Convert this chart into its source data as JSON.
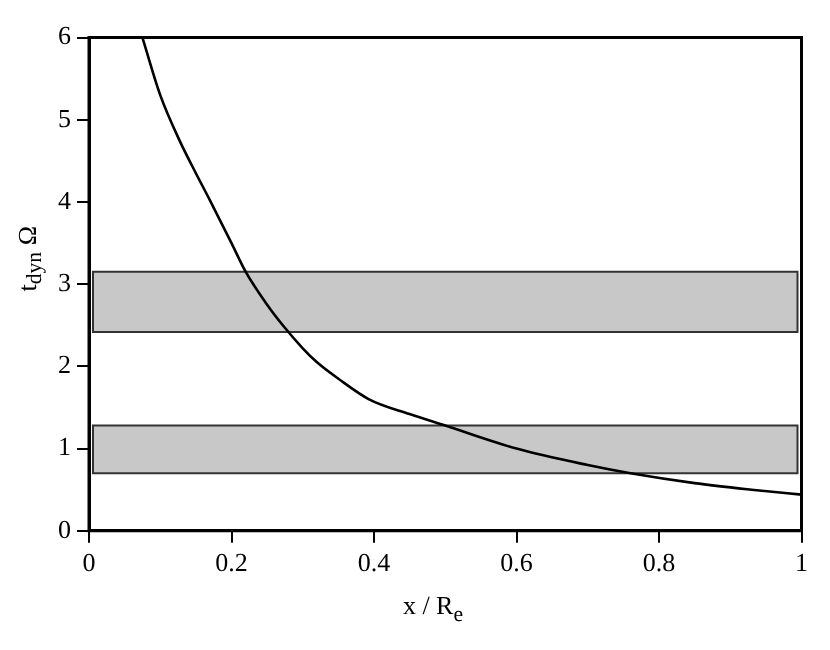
{
  "chart_data": {
    "type": "line",
    "xlabel": "x / R$_{e}$",
    "ylabel": "t$_{dyn}$ Ω",
    "series": [
      {
        "color": "#000000",
        "x": [
          0.075,
          0.1,
          0.127,
          0.15,
          0.168,
          0.2,
          0.22,
          0.25,
          0.272,
          0.3,
          0.32,
          0.35,
          0.393,
          0.45,
          0.5,
          0.6,
          0.7,
          0.76,
          0.85,
          0.93,
          1.0
        ],
        "values": [
          6.0,
          5.3,
          4.75,
          4.35,
          4.05,
          3.5,
          3.15,
          2.75,
          2.5,
          2.22,
          2.05,
          1.85,
          1.6,
          1.42,
          1.28,
          1.0,
          0.8,
          0.7,
          0.58,
          0.5,
          0.44
        ]
      }
    ],
    "xlim": [
      0,
      1
    ],
    "xticks": [
      0,
      0.2,
      0.4,
      0.6,
      0.8,
      1
    ],
    "ylim": [
      0,
      6
    ],
    "yticks": [
      0,
      1,
      2,
      3,
      4,
      5,
      6
    ],
    "bands": [
      {
        "axis": "y",
        "from": 2.42,
        "to": 3.15,
        "color": "#c8c8c8"
      },
      {
        "axis": "y",
        "from": 0.7,
        "to": 1.28,
        "color": "#c8c8c8"
      }
    ],
    "grid": false,
    "legend": false,
    "marker": "none",
    "line_style": "solid"
  }
}
